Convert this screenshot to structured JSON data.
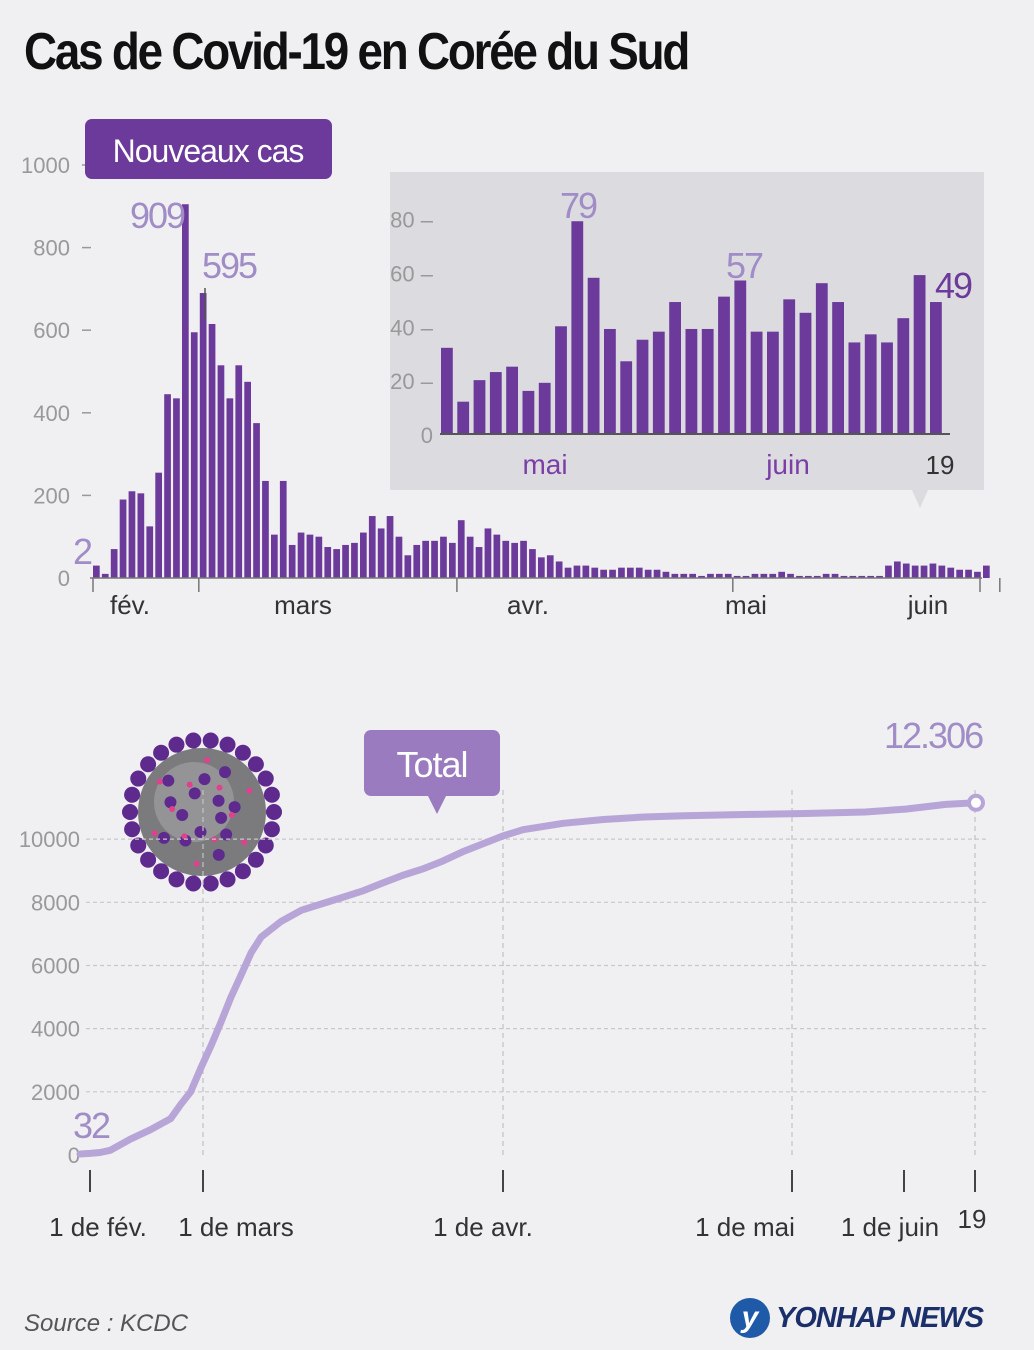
{
  "title": "Cas de Covid-19 en Corée du Sud",
  "source": "Source : KCDC",
  "logo_text": "YONHAP NEWS",
  "logo_mark": "y",
  "colors": {
    "bar": "#6b3a9a",
    "line": "#b8a5d8",
    "label_light": "#a08cc6",
    "badge_dark": "#6b3a9a",
    "badge_light": "#9a7bbf"
  },
  "chart_data": [
    {
      "type": "bar",
      "title": "Nouveaux cas",
      "x_start": "2020-01-20",
      "yticks": [
        0,
        200,
        400,
        600,
        800,
        1000
      ],
      "ylim": [
        0,
        1000
      ],
      "month_labels": [
        "fév.",
        "mars",
        "avr.",
        "mai",
        "juin"
      ],
      "annotations": [
        {
          "label": "2",
          "value": 2
        },
        {
          "label": "909",
          "value": 909
        },
        {
          "label": "595",
          "value": 595
        }
      ],
      "values": [
        30,
        10,
        70,
        190,
        210,
        205,
        125,
        255,
        445,
        435,
        905,
        595,
        690,
        615,
        515,
        435,
        515,
        475,
        375,
        235,
        105,
        235,
        80,
        110,
        105,
        100,
        75,
        70,
        80,
        85,
        110,
        150,
        120,
        150,
        100,
        55,
        80,
        90,
        90,
        100,
        85,
        140,
        100,
        75,
        120,
        105,
        90,
        85,
        90,
        70,
        50,
        55,
        40,
        25,
        30,
        30,
        25,
        20,
        20,
        25,
        25,
        25,
        20,
        20,
        15,
        10,
        10,
        10,
        5,
        10,
        10,
        10,
        5,
        5,
        10,
        10,
        10,
        15,
        10,
        5,
        5,
        5,
        10,
        10,
        5,
        5,
        5,
        5,
        5,
        30,
        40,
        35,
        30,
        30,
        35,
        30,
        25,
        20,
        20,
        15,
        30
      ]
    },
    {
      "type": "bar",
      "title": "inset",
      "yticks": [
        0,
        20,
        40,
        60,
        80
      ],
      "ylim": [
        0,
        88
      ],
      "x_labels": [
        "mai",
        "juin",
        "19"
      ],
      "annotations": [
        {
          "label": "79",
          "value": 79
        },
        {
          "label": "57",
          "value": 57
        },
        {
          "label": "49",
          "value": 49
        }
      ],
      "values": [
        32,
        12,
        20,
        23,
        25,
        16,
        19,
        40,
        79,
        58,
        39,
        27,
        35,
        38,
        49,
        39,
        39,
        51,
        57,
        38,
        38,
        50,
        45,
        56,
        49,
        34,
        37,
        34,
        43,
        59,
        49
      ]
    },
    {
      "type": "line",
      "title": "Total",
      "yticks": [
        0,
        2000,
        4000,
        6000,
        8000,
        10000
      ],
      "ylim": [
        0,
        12600
      ],
      "x_labels": [
        "1 de  fév.",
        "1 de mars",
        "1 de avr.",
        "1 de mai",
        "1 de juin",
        "19"
      ],
      "start_label": "32",
      "end_label": "12.306",
      "points": [
        [
          0,
          32
        ],
        [
          1,
          50
        ],
        [
          2,
          80
        ],
        [
          3,
          150
        ],
        [
          5,
          500
        ],
        [
          7,
          800
        ],
        [
          9,
          1150
        ],
        [
          10,
          1600
        ],
        [
          11,
          2000
        ],
        [
          12,
          2750
        ],
        [
          13,
          3450
        ],
        [
          14,
          4200
        ],
        [
          15,
          5000
        ],
        [
          16,
          5700
        ],
        [
          17,
          6400
        ],
        [
          18,
          6900
        ],
        [
          20,
          7400
        ],
        [
          22,
          7750
        ],
        [
          24,
          7950
        ],
        [
          26,
          8150
        ],
        [
          28,
          8350
        ],
        [
          30,
          8600
        ],
        [
          32,
          8850
        ],
        [
          34,
          9050
        ],
        [
          36,
          9300
        ],
        [
          38,
          9600
        ],
        [
          40,
          9850
        ],
        [
          42,
          10100
        ],
        [
          44,
          10300
        ],
        [
          48,
          10500
        ],
        [
          52,
          10620
        ],
        [
          56,
          10700
        ],
        [
          60,
          10740
        ],
        [
          66,
          10780
        ],
        [
          72,
          10810
        ],
        [
          78,
          10860
        ],
        [
          82,
          10950
        ],
        [
          86,
          11100
        ],
        [
          89,
          11150
        ]
      ]
    }
  ]
}
